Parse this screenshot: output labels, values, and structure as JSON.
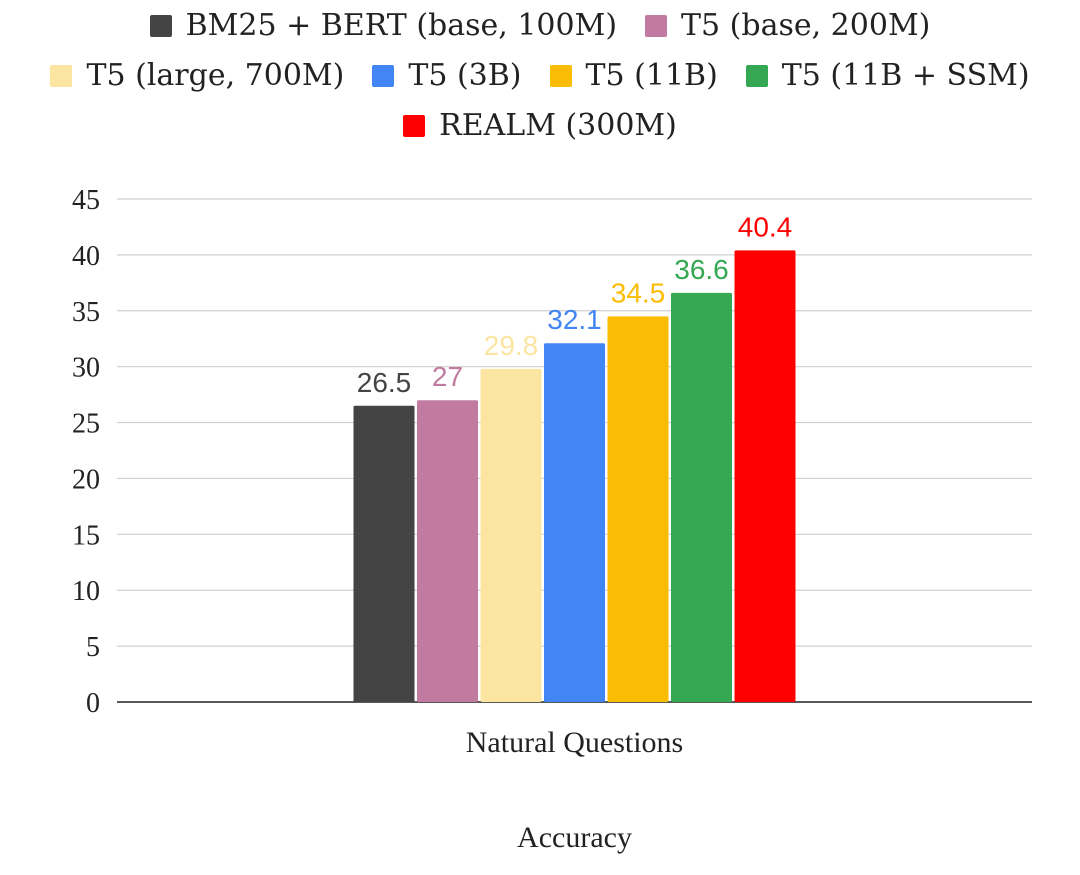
{
  "chart_data": {
    "type": "bar",
    "categories": [
      "Natural Questions"
    ],
    "series": [
      {
        "name": "BM25 + BERT (base, 100M)",
        "values": [
          26.5
        ],
        "label": "26.5",
        "color": "#444444"
      },
      {
        "name": "T5 (base, 200M)",
        "values": [
          27
        ],
        "label": "27",
        "color": "#c27ba0"
      },
      {
        "name": "T5 (large, 700M)",
        "values": [
          29.8
        ],
        "label": "29.8",
        "color": "#fce5a0"
      },
      {
        "name": "T5 (3B)",
        "values": [
          32.1
        ],
        "label": "32.1",
        "color": "#4285f4"
      },
      {
        "name": "T5 (11B)",
        "values": [
          34.5
        ],
        "label": "34.5",
        "color": "#fbbc04"
      },
      {
        "name": "T5 (11B + SSM)",
        "values": [
          36.6
        ],
        "label": "36.6",
        "color": "#34a853"
      },
      {
        "name": "REALM (300M)",
        "values": [
          40.4
        ],
        "label": "40.4",
        "color": "#ff0000"
      }
    ],
    "title": "",
    "xlabel": "Accuracy",
    "ylabel": "",
    "ylim": [
      0,
      45
    ],
    "yticks": [
      "0",
      "5",
      "10",
      "15",
      "20",
      "25",
      "30",
      "35",
      "40",
      "45"
    ],
    "grid": true,
    "legend_position": "top"
  }
}
